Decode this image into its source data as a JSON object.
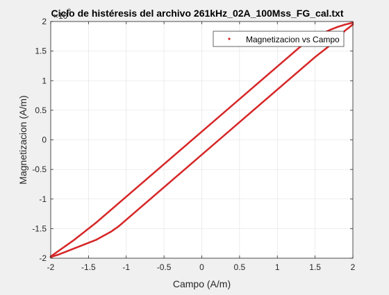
{
  "figure": {
    "background": "#f0f0f0"
  },
  "chart_data": {
    "type": "scatter",
    "title": "Ciclo de histéresis del archivo 261kHz_02A_100Mss_FG_cal.txt",
    "xlabel": "Campo (A/m)",
    "ylabel": "Magnetizacion (A/m)",
    "y_exponent_label": "×10",
    "y_exponent_value": "8",
    "xlim": [
      -2,
      2
    ],
    "ylim": [
      -2,
      2
    ],
    "x_ticks": [
      -2,
      -1.5,
      -1,
      -0.5,
      0,
      0.5,
      1,
      1.5,
      2
    ],
    "x_tick_labels": [
      "-2",
      "-1.5",
      "-1",
      "-0.5",
      "0",
      "0.5",
      "1",
      "1.5",
      "2"
    ],
    "y_ticks": [
      -2,
      -1.5,
      -1,
      -0.5,
      0,
      0.5,
      1,
      1.5,
      2
    ],
    "y_tick_labels": [
      "-2",
      "-1.5",
      "-1",
      "-0.5",
      "0",
      "0.5",
      "1",
      "1.5",
      "2"
    ],
    "grid": true,
    "legend_position": "top-right",
    "marker_color": "#d62728",
    "series": [
      {
        "name": "Magnetizacion vs Campo",
        "color": "#d62728",
        "upper_branch_x": [
          -2,
          -1.9,
          -1.8,
          -1.7,
          -1.6,
          -1.5,
          -1.4,
          -1.3,
          -1.2,
          -1.1,
          -1.0,
          -0.9,
          -0.8,
          -0.7,
          -0.6,
          -0.5,
          -0.4,
          -0.3,
          -0.2,
          -0.1,
          0.0,
          0.1,
          0.2,
          0.3,
          0.4,
          0.5,
          0.6,
          0.7,
          0.8,
          0.9,
          1.0,
          1.1,
          1.2,
          1.3,
          1.4,
          1.5,
          1.6,
          1.7,
          1.8,
          1.9,
          2.0
        ],
        "upper_branch_y": [
          -1.97,
          -1.88,
          -1.79,
          -1.7,
          -1.6,
          -1.5,
          -1.4,
          -1.29,
          -1.18,
          -1.07,
          -0.96,
          -0.85,
          -0.74,
          -0.63,
          -0.52,
          -0.41,
          -0.3,
          -0.19,
          -0.08,
          0.03,
          0.14,
          0.25,
          0.36,
          0.47,
          0.58,
          0.69,
          0.8,
          0.91,
          1.02,
          1.13,
          1.24,
          1.35,
          1.46,
          1.57,
          1.66,
          1.73,
          1.8,
          1.86,
          1.91,
          1.95,
          1.98
        ],
        "lower_branch_x": [
          2.0,
          1.9,
          1.8,
          1.7,
          1.6,
          1.5,
          1.4,
          1.3,
          1.2,
          1.1,
          1.0,
          0.9,
          0.8,
          0.7,
          0.6,
          0.5,
          0.4,
          0.3,
          0.2,
          0.1,
          0.0,
          -0.1,
          -0.2,
          -0.3,
          -0.4,
          -0.5,
          -0.6,
          -0.7,
          -0.8,
          -0.9,
          -1.0,
          -1.1,
          -1.2,
          -1.3,
          -1.4,
          -1.5,
          -1.6,
          -1.7,
          -1.8,
          -1.9,
          -2.0
        ],
        "lower_branch_y": [
          1.95,
          1.85,
          1.73,
          1.6,
          1.5,
          1.4,
          1.29,
          1.18,
          1.07,
          0.96,
          0.85,
          0.74,
          0.63,
          0.52,
          0.41,
          0.3,
          0.19,
          0.08,
          -0.03,
          -0.14,
          -0.25,
          -0.36,
          -0.47,
          -0.58,
          -0.69,
          -0.8,
          -0.91,
          -1.02,
          -1.13,
          -1.24,
          -1.35,
          -1.46,
          -1.55,
          -1.62,
          -1.69,
          -1.74,
          -1.79,
          -1.84,
          -1.89,
          -1.94,
          -1.98
        ]
      }
    ]
  }
}
